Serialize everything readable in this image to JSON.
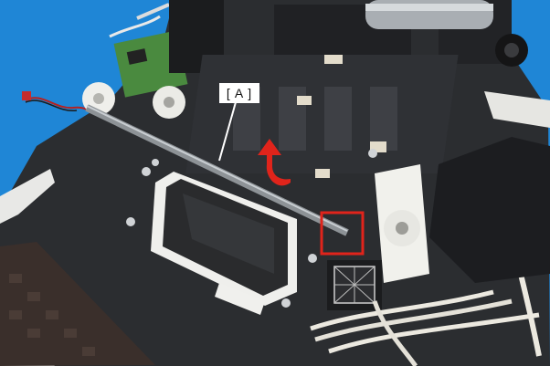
{
  "callout": {
    "label": "[ A ]"
  },
  "colors": {
    "background": "#1f86d6",
    "highlight_box": "#e0241b",
    "direction_arrow": "#e0241b",
    "callout_background": "#ffffff"
  },
  "icons": {
    "direction_arrow": "curved-arrow-icon",
    "highlight": "highlight-box"
  }
}
